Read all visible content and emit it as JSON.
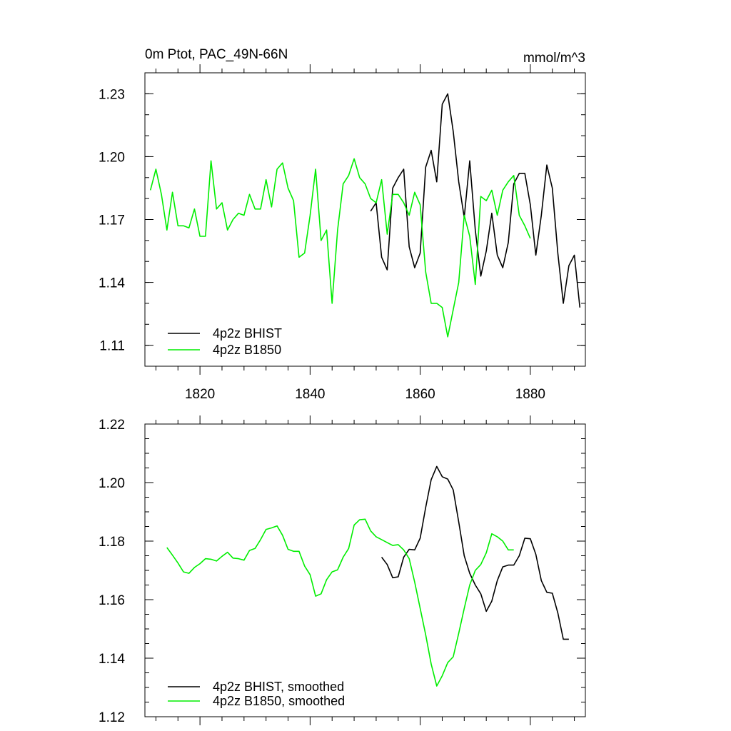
{
  "chart_data": [
    {
      "type": "line",
      "title": "0m Ptot, PAC_49N-66N",
      "units": "mmol/m^3",
      "xlim": [
        1810,
        1890
      ],
      "ylim": [
        1.1,
        1.24
      ],
      "xticks": [
        "1820",
        "1840",
        "1860",
        "1880"
      ],
      "yticks": [
        "1.11",
        "1.14",
        "1.17",
        "1.20",
        "1.23"
      ],
      "legend_position": "bottom-left",
      "series": [
        {
          "name": "4p2z BHIST",
          "color": "#000000",
          "x": [
            1851,
            1852,
            1853,
            1854,
            1855,
            1856,
            1857,
            1858,
            1859,
            1860,
            1861,
            1862,
            1863,
            1864,
            1865,
            1866,
            1867,
            1868,
            1869,
            1870,
            1871,
            1872,
            1873,
            1874,
            1875,
            1876,
            1877,
            1878,
            1879,
            1880,
            1881,
            1882,
            1883,
            1884,
            1885,
            1886,
            1887,
            1888,
            1889
          ],
          "y": [
            1.174,
            1.178,
            1.152,
            1.146,
            1.185,
            1.19,
            1.194,
            1.157,
            1.147,
            1.154,
            1.195,
            1.203,
            1.188,
            1.225,
            1.23,
            1.212,
            1.188,
            1.171,
            1.198,
            1.165,
            1.143,
            1.155,
            1.173,
            1.153,
            1.147,
            1.159,
            1.187,
            1.192,
            1.192,
            1.177,
            1.153,
            1.172,
            1.196,
            1.185,
            1.154,
            1.13,
            1.148,
            1.153,
            1.128
          ]
        },
        {
          "name": "4p2z B1850",
          "color": "#00ee00",
          "x": [
            1811,
            1812,
            1813,
            1814,
            1815,
            1816,
            1817,
            1818,
            1819,
            1820,
            1821,
            1822,
            1823,
            1824,
            1825,
            1826,
            1827,
            1828,
            1829,
            1830,
            1831,
            1832,
            1833,
            1834,
            1835,
            1836,
            1837,
            1838,
            1839,
            1840,
            1841,
            1842,
            1843,
            1844,
            1845,
            1846,
            1847,
            1848,
            1849,
            1850,
            1851,
            1852,
            1853,
            1854,
            1855,
            1856,
            1857,
            1858,
            1859,
            1860,
            1861,
            1862,
            1863,
            1864,
            1865,
            1866,
            1867,
            1868,
            1869,
            1870,
            1871,
            1872,
            1873,
            1874,
            1875,
            1876,
            1877,
            1878,
            1879,
            1880
          ],
          "y": [
            1.184,
            1.194,
            1.182,
            1.165,
            1.183,
            1.167,
            1.167,
            1.166,
            1.175,
            1.162,
            1.162,
            1.198,
            1.175,
            1.178,
            1.165,
            1.17,
            1.173,
            1.172,
            1.182,
            1.175,
            1.175,
            1.189,
            1.176,
            1.194,
            1.197,
            1.185,
            1.179,
            1.152,
            1.154,
            1.172,
            1.194,
            1.16,
            1.165,
            1.13,
            1.165,
            1.187,
            1.191,
            1.199,
            1.19,
            1.187,
            1.18,
            1.178,
            1.189,
            1.163,
            1.182,
            1.182,
            1.178,
            1.172,
            1.183,
            1.177,
            1.145,
            1.13,
            1.13,
            1.128,
            1.114,
            1.127,
            1.14,
            1.172,
            1.162,
            1.139,
            1.181,
            1.179,
            1.184,
            1.172,
            1.184,
            1.188,
            1.191,
            1.172,
            1.167,
            1.161
          ]
        }
      ]
    },
    {
      "type": "line",
      "title": "",
      "xlim": [
        1810,
        1890
      ],
      "ylim": [
        1.12,
        1.22
      ],
      "yticks": [
        "1.12",
        "1.14",
        "1.16",
        "1.18",
        "1.20",
        "1.22"
      ],
      "legend_position": "bottom-left",
      "series": [
        {
          "name": "4p2z BHIST, smoothed",
          "color": "#000000",
          "x": [
            1853,
            1854,
            1855,
            1856,
            1857,
            1858,
            1859,
            1860,
            1861,
            1862,
            1863,
            1864,
            1865,
            1866,
            1867,
            1868,
            1869,
            1870,
            1871,
            1872,
            1873,
            1874,
            1875,
            1876,
            1877,
            1878,
            1879,
            1880,
            1881,
            1882,
            1883,
            1884,
            1885,
            1886,
            1887
          ],
          "y": [
            1.1745,
            1.172,
            1.1675,
            1.1678,
            1.1745,
            1.1772,
            1.177,
            1.181,
            1.1915,
            1.201,
            1.2055,
            1.202,
            1.2012,
            1.1975,
            1.1865,
            1.175,
            1.169,
            1.165,
            1.162,
            1.156,
            1.1595,
            1.1665,
            1.1712,
            1.1718,
            1.1718,
            1.175,
            1.181,
            1.1808,
            1.1755,
            1.1665,
            1.1625,
            1.1622,
            1.1555,
            1.1465,
            1.1465
          ]
        },
        {
          "name": "4p2z B1850, smoothed",
          "color": "#00ee00",
          "x": [
            1814,
            1815,
            1816,
            1817,
            1818,
            1819,
            1820,
            1821,
            1822,
            1823,
            1824,
            1825,
            1826,
            1827,
            1828,
            1829,
            1830,
            1831,
            1832,
            1833,
            1834,
            1835,
            1836,
            1837,
            1838,
            1839,
            1840,
            1841,
            1842,
            1843,
            1844,
            1845,
            1846,
            1847,
            1848,
            1849,
            1850,
            1851,
            1852,
            1853,
            1854,
            1855,
            1856,
            1857,
            1858,
            1859,
            1860,
            1861,
            1862,
            1863,
            1864,
            1865,
            1866,
            1867,
            1868,
            1869,
            1870,
            1871,
            1872,
            1873,
            1874,
            1875,
            1876,
            1877
          ],
          "y": [
            1.1778,
            1.1752,
            1.1725,
            1.1695,
            1.169,
            1.171,
            1.1723,
            1.174,
            1.1738,
            1.1732,
            1.1748,
            1.1762,
            1.1742,
            1.174,
            1.1735,
            1.1768,
            1.1775,
            1.1805,
            1.184,
            1.1845,
            1.1852,
            1.182,
            1.1772,
            1.1765,
            1.1765,
            1.1715,
            1.1685,
            1.1612,
            1.162,
            1.1668,
            1.1695,
            1.1702,
            1.1745,
            1.1775,
            1.1855,
            1.1873,
            1.1875,
            1.1835,
            1.1815,
            1.1805,
            1.1795,
            1.1785,
            1.1788,
            1.177,
            1.174,
            1.166,
            1.157,
            1.148,
            1.138,
            1.1305,
            1.134,
            1.1385,
            1.1405,
            1.1485,
            1.157,
            1.165,
            1.17,
            1.172,
            1.176,
            1.1825,
            1.1815,
            1.18,
            1.177,
            1.177
          ]
        }
      ]
    }
  ]
}
